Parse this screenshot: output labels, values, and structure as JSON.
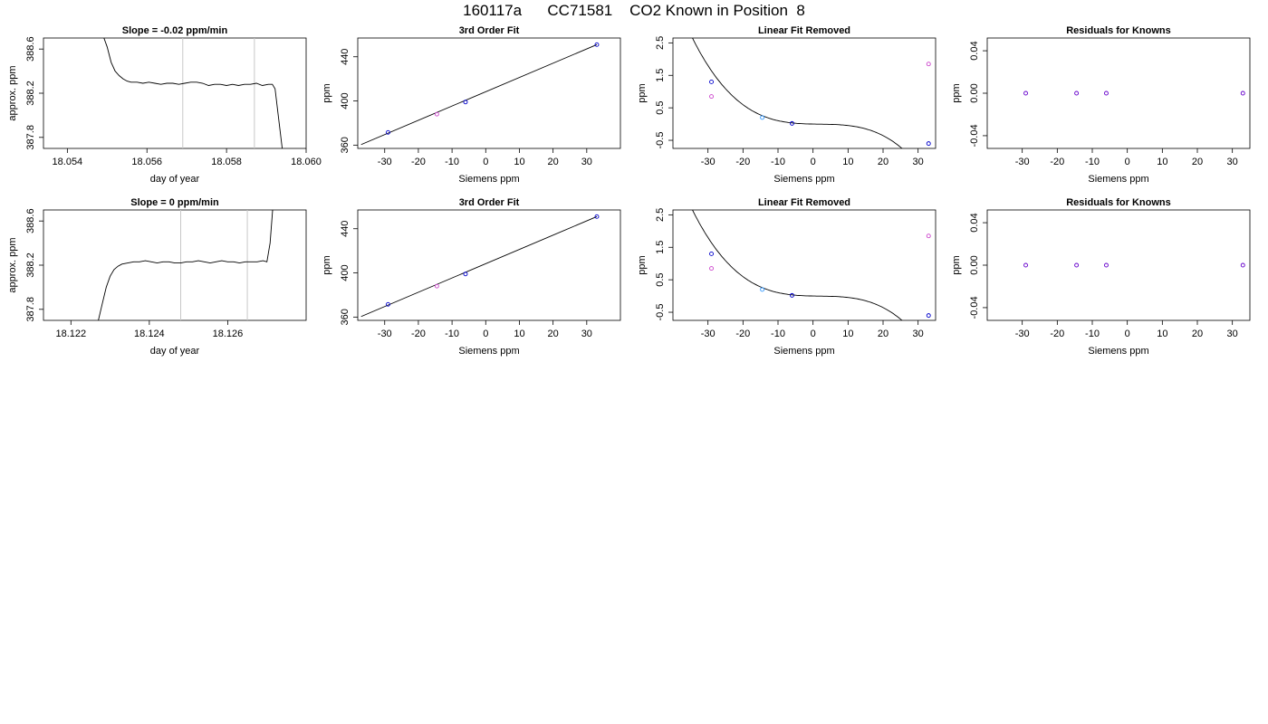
{
  "page": {
    "title": "160117a      CC71581    CO2 Known in Position  8"
  },
  "chart_data": [
    {
      "id": "r1c1",
      "type": "line",
      "title": "Slope =  -0.02  ppm/min",
      "xlabel": "day of year",
      "ylabel": "approx. ppm",
      "xlim": [
        18.0534,
        18.06
      ],
      "ylim": [
        387.7,
        388.7
      ],
      "xticks": [
        18.054,
        18.056,
        18.058,
        18.06
      ],
      "xtick_labels": [
        "18.054",
        "18.056",
        "18.058",
        "18.060"
      ],
      "yticks": [
        387.8,
        388.2,
        388.6
      ],
      "ytick_labels": [
        "387.8",
        "388.2",
        "388.6"
      ],
      "vlines": [
        18.0569,
        18.0587
      ],
      "x": [
        18.0549,
        18.055,
        18.0551,
        18.0552,
        18.0553,
        18.0554,
        18.0555,
        18.0556,
        18.05575,
        18.0559,
        18.05605,
        18.0562,
        18.05635,
        18.0565,
        18.05665,
        18.0568,
        18.05695,
        18.0571,
        18.05725,
        18.0574,
        18.05755,
        18.0577,
        18.05785,
        18.058,
        18.05815,
        18.0583,
        18.05845,
        18.0586,
        18.05875,
        18.0589,
        18.05905,
        18.05915,
        18.05922,
        18.0593,
        18.0594
      ],
      "y": [
        388.72,
        388.62,
        388.48,
        388.4,
        388.36,
        388.33,
        388.31,
        388.3,
        388.3,
        388.29,
        388.3,
        388.29,
        388.28,
        388.29,
        388.29,
        388.28,
        388.29,
        388.3,
        388.3,
        388.29,
        388.27,
        388.28,
        388.28,
        388.27,
        388.28,
        388.27,
        388.28,
        388.28,
        388.29,
        388.27,
        388.28,
        388.28,
        388.24,
        388.0,
        387.7
      ]
    },
    {
      "id": "r1c2",
      "type": "scatter",
      "title": "3rd Order Fit",
      "xlabel": "Siemens ppm",
      "ylabel": "ppm",
      "xlim": [
        -38,
        40
      ],
      "ylim": [
        357,
        457
      ],
      "xticks": [
        -30,
        -20,
        -10,
        0,
        10,
        20,
        30
      ],
      "xtick_labels": [
        "-30",
        "-20",
        "-10",
        "0",
        "10",
        "20",
        "30"
      ],
      "yticks": [
        360,
        400,
        440
      ],
      "ytick_labels": [
        "360",
        "400",
        "440"
      ],
      "points": [
        {
          "x": -29,
          "y": 371.5,
          "color": "#0000cc"
        },
        {
          "x": -6,
          "y": 399,
          "color": "#0000cc"
        },
        {
          "x": 33,
          "y": 451,
          "color": "#0000cc"
        },
        {
          "x": -14.5,
          "y": 388,
          "color": "#cc44cc"
        }
      ],
      "fit": {
        "x": [
          -37,
          33
        ],
        "y": [
          360.5,
          451
        ]
      }
    },
    {
      "id": "r1c3",
      "type": "scatter",
      "title": "Linear Fit Removed",
      "xlabel": "Siemens ppm",
      "ylabel": "ppm",
      "xlim": [
        -40,
        35
      ],
      "ylim": [
        -0.75,
        2.65
      ],
      "xticks": [
        -30,
        -20,
        -10,
        0,
        10,
        20,
        30
      ],
      "xtick_labels": [
        "-30",
        "-20",
        "-10",
        "0",
        "10",
        "20",
        "30"
      ],
      "yticks": [
        -0.5,
        0.5,
        1.5,
        2.5
      ],
      "ytick_labels": [
        "-0.5",
        "0.5",
        "1.5",
        "2.5"
      ],
      "points": [
        {
          "x": -29,
          "y": 1.3,
          "color": "#0000cc"
        },
        {
          "x": -29,
          "y": 0.85,
          "color": "#cc44cc"
        },
        {
          "x": -14.5,
          "y": 0.2,
          "color": "#3399ff"
        },
        {
          "x": -6,
          "y": 0.02,
          "color": "#0000cc"
        },
        {
          "x": 33,
          "y": -0.6,
          "color": "#0000cc"
        },
        {
          "x": 33,
          "y": 1.85,
          "color": "#cc44cc"
        }
      ],
      "curve_coef": [
        0,
        -0.002,
        0.0003,
        -5.45e-05
      ]
    },
    {
      "id": "r1c4",
      "type": "scatter",
      "title": "Residuals for Knowns",
      "xlabel": "Siemens ppm",
      "ylabel": "ppm",
      "xlim": [
        -40,
        35
      ],
      "ylim": [
        -0.052,
        0.052
      ],
      "xticks": [
        -30,
        -20,
        -10,
        0,
        10,
        20,
        30
      ],
      "xtick_labels": [
        "-30",
        "-20",
        "-10",
        "0",
        "10",
        "20",
        "30"
      ],
      "yticks": [
        -0.04,
        0.0,
        0.04
      ],
      "ytick_labels": [
        "-0.04",
        "0.00",
        "0.04"
      ],
      "points": [
        {
          "x": -29,
          "y": 0,
          "color": "#6600cc"
        },
        {
          "x": -14.5,
          "y": 0,
          "color": "#6600cc"
        },
        {
          "x": -6,
          "y": 0,
          "color": "#6600cc"
        },
        {
          "x": 33,
          "y": 0,
          "color": "#6600cc"
        }
      ]
    },
    {
      "id": "r2c1",
      "type": "line",
      "title": "Slope =  0  ppm/min",
      "xlabel": "day of year",
      "ylabel": "approx. ppm",
      "xlim": [
        18.1213,
        18.128
      ],
      "ylim": [
        387.7,
        388.7
      ],
      "xticks": [
        18.122,
        18.124,
        18.126
      ],
      "xtick_labels": [
        "18.122",
        "18.124",
        "18.126"
      ],
      "vlines": [
        18.1248,
        18.1265
      ],
      "yticks": [
        387.8,
        388.2,
        388.6
      ],
      "ytick_labels": [
        "387.8",
        "388.2",
        "388.6"
      ],
      "x": [
        18.1227,
        18.1228,
        18.1229,
        18.123,
        18.1231,
        18.1232,
        18.1233,
        18.12345,
        18.1236,
        18.12375,
        18.1239,
        18.12405,
        18.1242,
        18.12435,
        18.1245,
        18.12465,
        18.1248,
        18.12495,
        18.1251,
        18.12525,
        18.1254,
        18.12555,
        18.1257,
        18.12585,
        18.126,
        18.12615,
        18.1263,
        18.12645,
        18.1266,
        18.12675,
        18.1269,
        18.127,
        18.12708,
        18.12715
      ],
      "y": [
        387.7,
        387.85,
        388.0,
        388.1,
        388.16,
        388.19,
        388.21,
        388.22,
        388.23,
        388.23,
        388.24,
        388.23,
        388.22,
        388.23,
        388.23,
        388.22,
        388.22,
        388.23,
        388.23,
        388.24,
        388.23,
        388.22,
        388.23,
        388.24,
        388.23,
        388.23,
        388.22,
        388.23,
        388.23,
        388.23,
        388.24,
        388.23,
        388.4,
        388.72
      ]
    },
    {
      "id": "r2c2",
      "type": "scatter",
      "title": "3rd Order Fit",
      "xlabel": "Siemens ppm",
      "ylabel": "ppm",
      "xlim": [
        -38,
        40
      ],
      "ylim": [
        357,
        457
      ],
      "xticks": [
        -30,
        -20,
        -10,
        0,
        10,
        20,
        30
      ],
      "xtick_labels": [
        "-30",
        "-20",
        "-10",
        "0",
        "10",
        "20",
        "30"
      ],
      "yticks": [
        360,
        400,
        440
      ],
      "ytick_labels": [
        "360",
        "400",
        "440"
      ],
      "points": [
        {
          "x": -29,
          "y": 371.5,
          "color": "#0000cc"
        },
        {
          "x": -6,
          "y": 399,
          "color": "#0000cc"
        },
        {
          "x": 33,
          "y": 451,
          "color": "#0000cc"
        },
        {
          "x": -14.5,
          "y": 388,
          "color": "#cc44cc"
        }
      ],
      "fit": {
        "x": [
          -37,
          33
        ],
        "y": [
          360.5,
          451
        ]
      }
    },
    {
      "id": "r2c3",
      "type": "scatter",
      "title": "Linear Fit Removed",
      "xlabel": "Siemens ppm",
      "ylabel": "ppm",
      "xlim": [
        -40,
        35
      ],
      "ylim": [
        -0.75,
        2.65
      ],
      "xticks": [
        -30,
        -20,
        -10,
        0,
        10,
        20,
        30
      ],
      "xtick_labels": [
        "-30",
        "-20",
        "-10",
        "0",
        "10",
        "20",
        "30"
      ],
      "yticks": [
        -0.5,
        0.5,
        1.5,
        2.5
      ],
      "ytick_labels": [
        "-0.5",
        "0.5",
        "1.5",
        "2.5"
      ],
      "points": [
        {
          "x": -29,
          "y": 1.3,
          "color": "#0000cc"
        },
        {
          "x": -29,
          "y": 0.85,
          "color": "#cc44cc"
        },
        {
          "x": -14.5,
          "y": 0.2,
          "color": "#3399ff"
        },
        {
          "x": -6,
          "y": 0.02,
          "color": "#0000cc"
        },
        {
          "x": 33,
          "y": -0.6,
          "color": "#0000cc"
        },
        {
          "x": 33,
          "y": 1.85,
          "color": "#cc44cc"
        }
      ],
      "curve_coef": [
        0,
        -0.002,
        0.0003,
        -5.45e-05
      ]
    },
    {
      "id": "r2c4",
      "type": "scatter",
      "title": "Residuals for Knowns",
      "xlabel": "Siemens ppm",
      "ylabel": "ppm",
      "xlim": [
        -40,
        35
      ],
      "ylim": [
        -0.052,
        0.052
      ],
      "xticks": [
        -30,
        -20,
        -10,
        0,
        10,
        20,
        30
      ],
      "xtick_labels": [
        "-30",
        "-20",
        "-10",
        "0",
        "10",
        "20",
        "30"
      ],
      "yticks": [
        -0.04,
        0.0,
        0.04
      ],
      "ytick_labels": [
        "-0.04",
        "0.00",
        "0.04"
      ],
      "points": [
        {
          "x": -29,
          "y": 0,
          "color": "#6600cc"
        },
        {
          "x": -14.5,
          "y": 0,
          "color": "#6600cc"
        },
        {
          "x": -6,
          "y": 0,
          "color": "#6600cc"
        },
        {
          "x": 33,
          "y": 0,
          "color": "#6600cc"
        }
      ]
    }
  ]
}
